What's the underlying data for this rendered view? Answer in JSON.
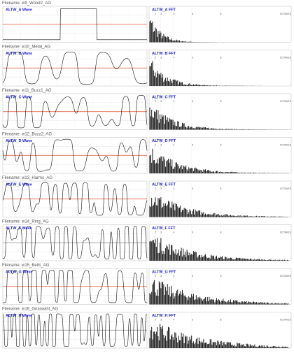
{
  "rows": [
    {
      "filename": "Filename: w9_Wood2_AG",
      "wave_label": "ALTW_A Wave",
      "fft_label": "ALTW_A FFT"
    },
    {
      "filename": "Filename: w10_Metal_AG",
      "wave_label": "ALTW_B Wave",
      "fft_label": "ALTW_B FFT"
    },
    {
      "filename": "Filename: w11_Buzz1_AG",
      "wave_label": "ALTW_C Wave",
      "fft_label": "ALTW_C FFT"
    },
    {
      "filename": "Filename: w12_Buzz2_AG",
      "wave_label": "ALTW_D Wave",
      "fft_label": "ALTW_D FFT"
    },
    {
      "filename": "Filename: w13_Harms_AG",
      "wave_label": "ALTW_E Wave",
      "fft_label": "ALTW_E FFT"
    },
    {
      "filename": "Filename: w14_Ring_AG",
      "wave_label": "ALTW_F Wave",
      "fft_label": "ALTW_F FFT"
    },
    {
      "filename": "Filename: w15_Bells_AG",
      "wave_label": "ALTW_G Wave",
      "fft_label": "ALTW_G FFT"
    },
    {
      "filename": "Filename: w16_Gnarwahl_AG",
      "wave_label": "ALTW_H Wave",
      "fft_label": "ALTW_H FFT"
    }
  ],
  "fft_axis": [
    "2",
    "3",
    "4",
    "6",
    "8",
    "OCTAVES"
  ]
}
